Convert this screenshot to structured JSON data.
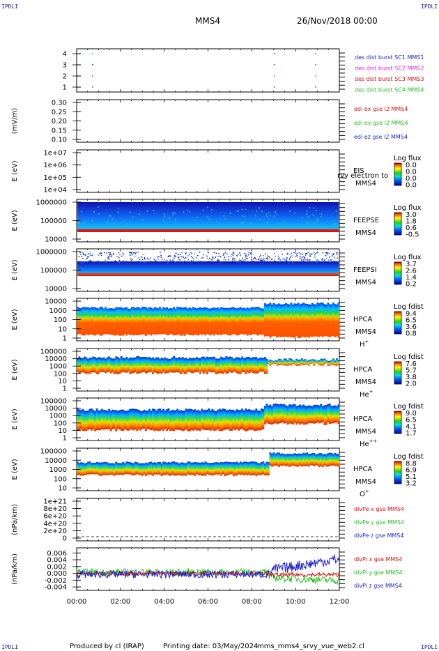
{
  "header": {
    "spacecraft": "MMS4",
    "date_time": "26/Nov/2018 00:00",
    "corner_logo": "IPDLI"
  },
  "footer": {
    "produced_by": "Produced by cl (IRAP)",
    "printing_date": "Printing date: 03/May/2024",
    "script": "mms_mms4_srvy_vue_web2.cl"
  },
  "x_axis": {
    "ticks": [
      "00:00",
      "02:00",
      "04:00",
      "06:00",
      "08:00",
      "10:00",
      "12:00"
    ],
    "range_hours": [
      0,
      12
    ]
  },
  "chart_data": [
    {
      "type": "scatter",
      "id": "burst",
      "ylabel": "",
      "yticks": [
        "4",
        "3",
        "2",
        "1"
      ],
      "ylim": [
        0.5,
        4.5
      ],
      "series": [
        {
          "name": "des dist burst SC1 MMS1",
          "color": "#1a1ad6",
          "y": 1,
          "x_hours": [
            0.7,
            9.0,
            10.9
          ]
        },
        {
          "name": "des dist burst SC2 MMS2",
          "color": "#e020e0",
          "y": 2,
          "x_hours": [
            0.7,
            9.0,
            10.9
          ]
        },
        {
          "name": "des dist burst SC3 MMS3",
          "color": "#e01010",
          "y": 3,
          "x_hours": [
            0.7,
            9.0,
            10.9
          ]
        },
        {
          "name": "des dist burst SC4 MMS4",
          "color": "#20c020",
          "y": 4,
          "x_hours": [
            0.7,
            9.0,
            10.9
          ]
        }
      ]
    },
    {
      "type": "line",
      "id": "efield",
      "ylabel": "(mV/m)",
      "yticks": [
        "0.30",
        "0.25",
        "0.20",
        "0.15",
        "0.10"
      ],
      "ylim": [
        0.08,
        0.32
      ],
      "series": [
        {
          "name": "edi ex gse l2 MMS4",
          "color": "#e01010"
        },
        {
          "name": "edi ey gse l2 MMS4",
          "color": "#20c020"
        },
        {
          "name": "edi ez gse l2 MMS4",
          "color": "#1a1ad6"
        }
      ]
    },
    {
      "type": "heatmap",
      "id": "eis",
      "ylabel": "E (eV)",
      "yticks": [
        "1e+07",
        "1e+06",
        "1e+05",
        "1e+04"
      ],
      "instrument": [
        "EIS",
        "MMS4"
      ],
      "overlay_text": "rvy electron to",
      "colorbar": {
        "title": "Log flux",
        "ticks": [
          "0.0",
          "0.0",
          "0.0",
          "0.0"
        ]
      }
    },
    {
      "type": "heatmap",
      "id": "feepse",
      "ylabel": "E (eV)",
      "yticks": [
        "1000000",
        "100000",
        "10000"
      ],
      "instrument": [
        "FEEPSE",
        "MMS4"
      ],
      "colorbar": {
        "title": "Log flux",
        "ticks": [
          "3.0",
          "1.8",
          "0.6",
          "-0.5"
        ]
      }
    },
    {
      "type": "heatmap",
      "id": "feepsi",
      "ylabel": "E (eV)",
      "yticks": [
        "1000000",
        "100000",
        "10000"
      ],
      "instrument": [
        "FEEPSI",
        "MMS4"
      ],
      "colorbar": {
        "title": "Log flux",
        "ticks": [
          "3.7",
          "2.6",
          "1.4",
          "0.2"
        ]
      }
    },
    {
      "type": "heatmap",
      "id": "hpca_h",
      "ylabel": "E (eV)",
      "yticks": [
        "10000",
        "1000",
        "100",
        "10",
        "1"
      ],
      "instrument": [
        "HPCA",
        "MMS4"
      ],
      "species": "H",
      "charge": "+",
      "colorbar": {
        "title": "Log fdist",
        "ticks": [
          "9.4",
          "6.5",
          "3.6",
          "0.8"
        ]
      }
    },
    {
      "type": "heatmap",
      "id": "hpca_he1",
      "ylabel": "E (eV)",
      "yticks": [
        "100000",
        "10000",
        "1000",
        "100",
        "10",
        "1"
      ],
      "instrument": [
        "HPCA",
        "MMS4"
      ],
      "species": "He",
      "charge": "+",
      "colorbar": {
        "title": "Log fdist",
        "ticks": [
          "7.6",
          "5.7",
          "3.8",
          "2.0"
        ]
      }
    },
    {
      "type": "heatmap",
      "id": "hpca_he2",
      "ylabel": "E (eV)",
      "yticks": [
        "100000",
        "10000",
        "1000",
        "100",
        "10",
        "1"
      ],
      "instrument": [
        "HPCA",
        "MMS4"
      ],
      "species": "He",
      "charge": "++",
      "colorbar": {
        "title": "Log fdist",
        "ticks": [
          "9.0",
          "6.5",
          "4.1",
          "1.7"
        ]
      }
    },
    {
      "type": "heatmap",
      "id": "hpca_o",
      "ylabel": "E (eV)",
      "yticks": [
        "100000",
        "10000",
        "1000",
        "100",
        "10"
      ],
      "instrument": [
        "HPCA",
        "MMS4"
      ],
      "species": "O",
      "charge": "+",
      "colorbar": {
        "title": "Log fdist",
        "ticks": [
          "8.8",
          "6.9",
          "5.1",
          "3.2"
        ]
      }
    },
    {
      "type": "line",
      "id": "divpe",
      "ylabel": "(nPa/km)",
      "yticks": [
        "1e+21",
        "8e+20",
        "6e+20",
        "4e+20",
        "2e+20",
        "0"
      ],
      "ylim": [
        -5e+19,
        1.1e+21
      ],
      "series": [
        {
          "name": "divPe x gse MMS4",
          "color": "#e01010"
        },
        {
          "name": "divPe y gse MMS4",
          "color": "#20c020"
        },
        {
          "name": "divPe z gse MMS4",
          "color": "#1a1ad6"
        }
      ]
    },
    {
      "type": "line",
      "id": "divpi",
      "ylabel": "(nPa/km)",
      "yticks": [
        "0.006",
        "0.004",
        "0.002",
        "0.000",
        "-0.002",
        "-0.004"
      ],
      "ylim": [
        -0.005,
        0.0075
      ],
      "series": [
        {
          "name": "divPi x gse MMS4",
          "color": "#e01010"
        },
        {
          "name": "divPi y gse MMS4",
          "color": "#20c020"
        },
        {
          "name": "divPi z gse MMS4",
          "color": "#1a1ad6"
        }
      ]
    }
  ]
}
